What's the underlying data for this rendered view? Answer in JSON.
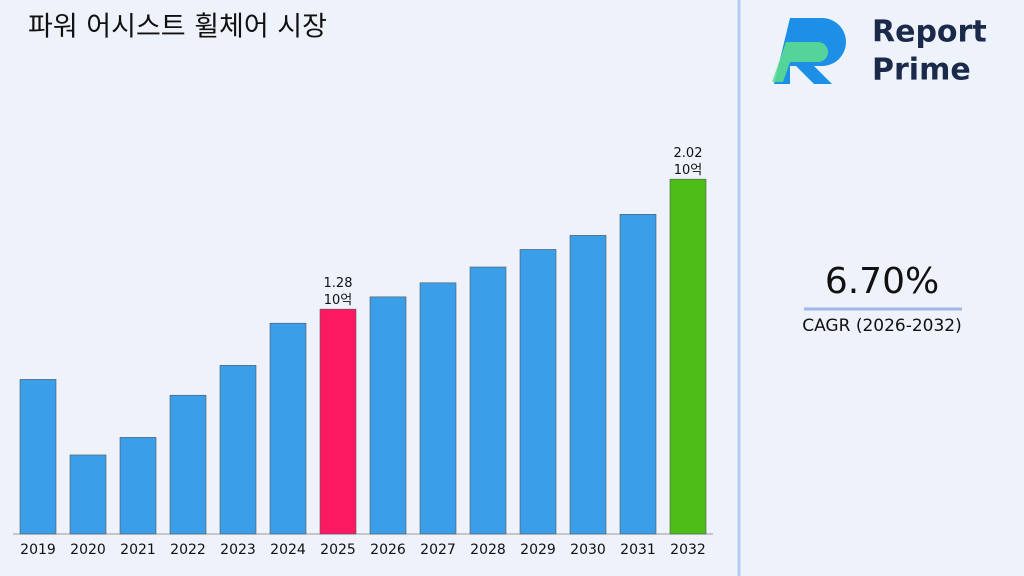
{
  "chart_data": {
    "type": "bar",
    "title": "파워 어시스트 휠체어 시장",
    "categories": [
      "2019",
      "2020",
      "2021",
      "2022",
      "2023",
      "2024",
      "2025",
      "2026",
      "2027",
      "2028",
      "2029",
      "2030",
      "2031",
      "2032"
    ],
    "values": [
      0.88,
      0.45,
      0.55,
      0.79,
      0.96,
      1.2,
      1.28,
      1.35,
      1.43,
      1.52,
      1.62,
      1.7,
      1.82,
      2.02
    ],
    "value_labels": [
      null,
      null,
      null,
      null,
      null,
      null,
      "1.28 10억",
      null,
      null,
      null,
      null,
      null,
      null,
      "2.02 10억"
    ],
    "colors": [
      "#3a9fe8",
      "#3a9fe8",
      "#3a9fe8",
      "#3a9fe8",
      "#3a9fe8",
      "#3a9fe8",
      "#fc1a63",
      "#3a9fe8",
      "#3a9fe8",
      "#3a9fe8",
      "#3a9fe8",
      "#3a9fe8",
      "#3a9fe8",
      "#4cbe17"
    ],
    "ylim": [
      0,
      2.3
    ]
  },
  "cagr": {
    "value": "6.70%",
    "label": "CAGR (2026-2032)"
  },
  "logo": {
    "line1": "Report",
    "line2": "Prime"
  }
}
